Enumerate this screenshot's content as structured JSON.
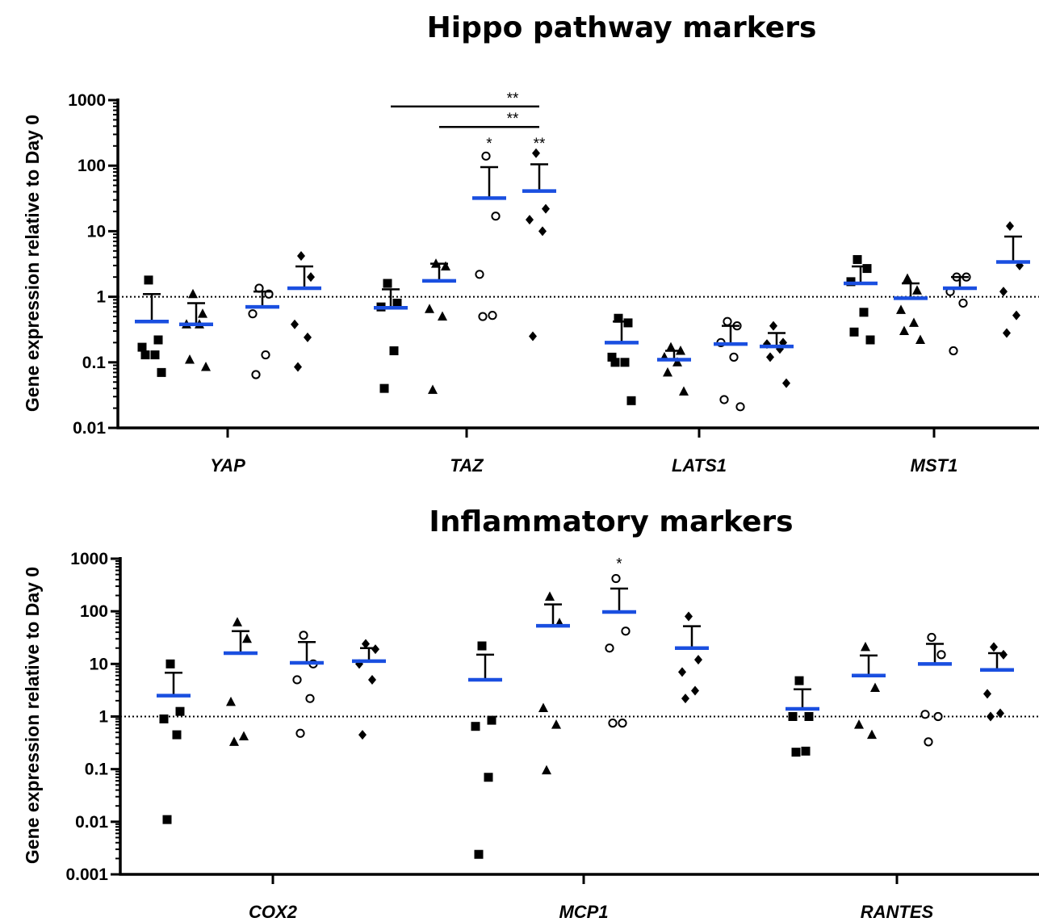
{
  "chart_data": [
    {
      "type": "scatter",
      "title": "Hippo pathway markers",
      "ylabel": "Gene expression relative to Day 0",
      "yscale": "log",
      "ylim": [
        0.01,
        1000
      ],
      "yticks": [
        "0.01",
        "0.1",
        "1",
        "10",
        "100",
        "1000"
      ],
      "reference_line": 1,
      "categories": [
        "YAP",
        "TAZ",
        "LATS1",
        "MST1"
      ],
      "groups": [
        {
          "category": "YAP",
          "marker": "square",
          "points": [
            1.8,
            0.22,
            0.17,
            0.13,
            0.13,
            0.07
          ],
          "mean": 0.42,
          "sem_upper": 1.1
        },
        {
          "category": "YAP",
          "marker": "triangle",
          "points": [
            1.1,
            0.55,
            0.38,
            0.38,
            0.11,
            0.085
          ],
          "mean": 0.38,
          "sem_upper": 0.8
        },
        {
          "category": "YAP",
          "marker": "circle",
          "points": [
            1.35,
            1.1,
            0.55,
            0.13,
            0.065
          ],
          "mean": 0.7,
          "sem_upper": 1.2
        },
        {
          "category": "YAP",
          "marker": "diamond",
          "points": [
            4.2,
            2.0,
            0.38,
            0.24,
            0.085
          ],
          "mean": 1.35,
          "sem_upper": 2.9
        },
        {
          "category": "TAZ",
          "marker": "square",
          "points": [
            1.6,
            0.8,
            0.7,
            0.15,
            0.04
          ],
          "mean": 0.68,
          "sem_upper": 1.3
        },
        {
          "category": "TAZ",
          "marker": "triangle",
          "points": [
            3.2,
            2.9,
            0.65,
            0.5,
            0.038
          ],
          "mean": 1.75,
          "sem_upper": 3.2
        },
        {
          "category": "TAZ",
          "marker": "circle",
          "points": [
            140,
            17,
            2.2,
            0.52,
            0.5
          ],
          "mean": 32,
          "sem_upper": 95
        },
        {
          "category": "TAZ",
          "marker": "diamond",
          "points": [
            155,
            22,
            15,
            10,
            0.25
          ],
          "mean": 41,
          "sem_upper": 105
        },
        {
          "category": "LATS1",
          "marker": "square",
          "points": [
            0.47,
            0.4,
            0.12,
            0.1,
            0.1,
            0.026
          ],
          "mean": 0.2,
          "sem_upper": 0.42
        },
        {
          "category": "LATS1",
          "marker": "triangle",
          "points": [
            0.17,
            0.15,
            0.12,
            0.1,
            0.07,
            0.036
          ],
          "mean": 0.11,
          "sem_upper": 0.15
        },
        {
          "category": "LATS1",
          "marker": "circle",
          "points": [
            0.42,
            0.36,
            0.2,
            0.12,
            0.027,
            0.021
          ],
          "mean": 0.19,
          "sem_upper": 0.36
        },
        {
          "category": "LATS1",
          "marker": "diamond",
          "points": [
            0.36,
            0.2,
            0.19,
            0.16,
            0.12,
            0.048
          ],
          "mean": 0.175,
          "sem_upper": 0.28
        },
        {
          "category": "MST1",
          "marker": "square",
          "points": [
            3.7,
            2.7,
            1.7,
            0.58,
            0.29,
            0.22
          ],
          "mean": 1.6,
          "sem_upper": 2.9
        },
        {
          "category": "MST1",
          "marker": "triangle",
          "points": [
            1.9,
            1.25,
            0.63,
            0.4,
            0.3,
            0.22
          ],
          "mean": 0.95,
          "sem_upper": 1.6
        },
        {
          "category": "MST1",
          "marker": "circle",
          "points": [
            2.0,
            2.0,
            1.2,
            0.8,
            0.15
          ],
          "mean": 1.35,
          "sem_upper": 2.0
        },
        {
          "category": "MST1",
          "marker": "diamond",
          "points": [
            12,
            3.0,
            1.2,
            0.52,
            0.28
          ],
          "mean": 3.4,
          "sem_upper": 8.3
        }
      ],
      "annotations": [
        {
          "text": "*",
          "group": 6,
          "value": 230
        },
        {
          "text": "**",
          "group": 7,
          "value": 230
        },
        {
          "text": "**",
          "from_group": 4,
          "to_group": 7,
          "value": 800
        },
        {
          "text": "**",
          "from_group": 5,
          "to_group": 7,
          "value": 390
        }
      ]
    },
    {
      "type": "scatter",
      "title": "Inflammatory markers",
      "ylabel": "Gene expression relative to Day 0",
      "yscale": "log",
      "ylim": [
        0.001,
        1000
      ],
      "yticks": [
        "0.001",
        "0.01",
        "0.1",
        "1",
        "10",
        "100",
        "1000"
      ],
      "reference_line": 1,
      "categories": [
        "COX2",
        "MCP1",
        "RANTES"
      ],
      "groups": [
        {
          "category": "COX2",
          "marker": "square",
          "points": [
            10,
            1.25,
            0.9,
            0.45,
            0.011
          ],
          "mean": 2.5,
          "sem_upper": 6.8
        },
        {
          "category": "COX2",
          "marker": "triangle",
          "points": [
            62,
            30,
            1.9,
            0.42,
            0.33
          ],
          "mean": 16,
          "sem_upper": 42
        },
        {
          "category": "COX2",
          "marker": "circle",
          "points": [
            35,
            10,
            5,
            2.2,
            0.48
          ],
          "mean": 10.5,
          "sem_upper": 26
        },
        {
          "category": "COX2",
          "marker": "diamond",
          "points": [
            24,
            19,
            10,
            5,
            0.45
          ],
          "mean": 11.3,
          "sem_upper": 20
        },
        {
          "category": "MCP1",
          "marker": "square",
          "points": [
            22,
            0.85,
            0.65,
            0.07,
            0.0024
          ],
          "mean": 5,
          "sem_upper": 15
        },
        {
          "category": "MCP1",
          "marker": "triangle",
          "points": [
            190,
            60,
            1.45,
            0.7,
            0.095
          ],
          "mean": 53,
          "sem_upper": 135
        },
        {
          "category": "MCP1",
          "marker": "circle",
          "points": [
            420,
            42,
            20,
            0.75,
            0.75
          ],
          "mean": 97,
          "sem_upper": 270
        },
        {
          "category": "MCP1",
          "marker": "diamond",
          "points": [
            80,
            12,
            7,
            3.1,
            2.2
          ],
          "mean": 20,
          "sem_upper": 52
        },
        {
          "category": "RANTES",
          "marker": "square",
          "points": [
            4.8,
            1.0,
            1.0,
            0.22,
            0.21
          ],
          "mean": 1.4,
          "sem_upper": 3.3
        },
        {
          "category": "RANTES",
          "marker": "triangle",
          "points": [
            21,
            3.5,
            0.7,
            0.45
          ],
          "mean": 6,
          "sem_upper": 14.5
        },
        {
          "category": "RANTES",
          "marker": "circle",
          "points": [
            32,
            15,
            1.1,
            1.0,
            0.33
          ],
          "mean": 10,
          "sem_upper": 24
        },
        {
          "category": "RANTES",
          "marker": "diamond",
          "points": [
            21,
            15,
            2.7,
            1.15,
            1.0
          ],
          "mean": 7.7,
          "sem_upper": 16
        }
      ],
      "annotations": [
        {
          "text": "*",
          "group": 6,
          "value": 850
        }
      ]
    }
  ],
  "colors": {
    "mean_bar": "#1a4fe0",
    "points": "#000000",
    "axes": "#000000"
  }
}
